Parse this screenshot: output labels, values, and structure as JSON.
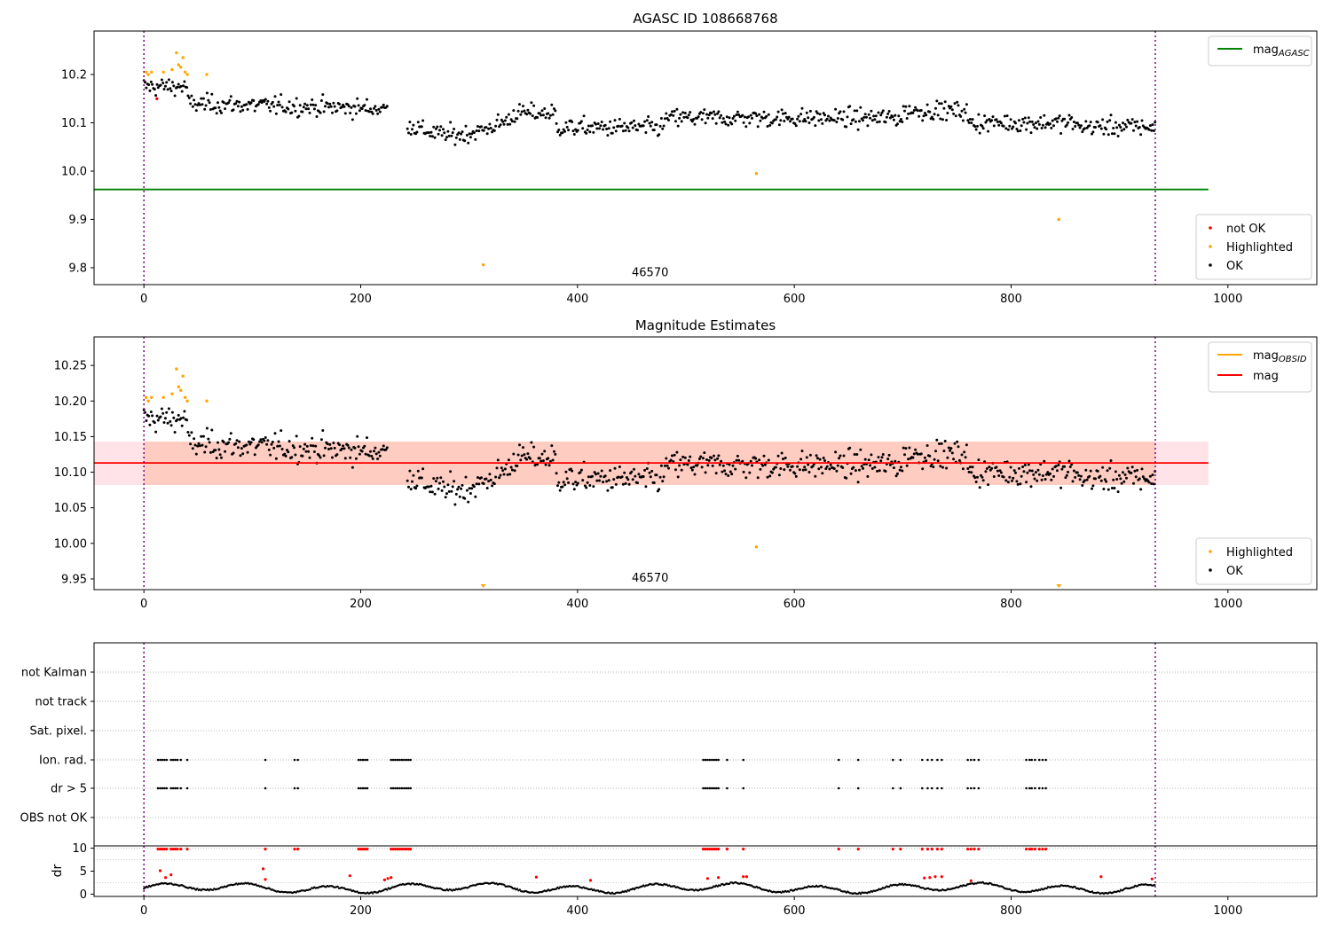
{
  "chart_data": [
    {
      "type": "scatter",
      "title": "AGASC ID 108668768",
      "xlim": [
        -46,
        1082
      ],
      "ylim": [
        9.765,
        10.29
      ],
      "x_ticks": [
        0,
        200,
        400,
        600,
        800,
        1000
      ],
      "x_tick_labels": [
        "0",
        "200",
        "400",
        "600",
        "800",
        "1000"
      ],
      "y_ticks": [
        9.8,
        9.9,
        10.0,
        10.1,
        10.2
      ],
      "y_tick_labels": [
        "9.8",
        "9.9",
        "10.0",
        "10.1",
        "10.2"
      ],
      "vlines": [
        0,
        933
      ],
      "hlines": [
        {
          "name": "mag",
          "name_sub": "AGASC",
          "y": 9.962,
          "x0": -46,
          "x1": 982,
          "color": "#008000"
        }
      ],
      "annotation": {
        "text": "46570",
        "x": 467,
        "y": 9.782
      },
      "legend_lines": [
        {
          "name": "mag",
          "sub": "AGASC",
          "color": "#008000"
        }
      ],
      "legend_points": [
        {
          "name": "not OK",
          "color": "#ff0000"
        },
        {
          "name": "Highlighted",
          "color": "#ffa500"
        },
        {
          "name": "OK",
          "color": "#000000"
        }
      ],
      "series": [
        {
          "name": "OK",
          "color": "#000000",
          "points": "generated: ~900 points, 0 to 933, mean 10.11"
        },
        {
          "name": "Highlighted",
          "color": "#ffa500",
          "points": [
            [
              2,
              10.205
            ],
            [
              4,
              10.2
            ],
            [
              7,
              10.205
            ],
            [
              18,
              10.205
            ],
            [
              26,
              10.21
            ],
            [
              30,
              10.245
            ],
            [
              32,
              10.22
            ],
            [
              34,
              10.215
            ],
            [
              36,
              10.235
            ],
            [
              38,
              10.205
            ],
            [
              40,
              10.2
            ],
            [
              58,
              10.2
            ],
            [
              313,
              9.806
            ],
            [
              565,
              9.995
            ],
            [
              844,
              9.9
            ]
          ]
        },
        {
          "name": "not OK",
          "color": "#ff0000",
          "points": [
            [
              12,
              10.15
            ]
          ]
        }
      ]
    },
    {
      "type": "scatter",
      "title": "Magnitude Estimates",
      "xlim": [
        -46,
        1082
      ],
      "ylim": [
        9.935,
        10.29
      ],
      "x_ticks": [
        0,
        200,
        400,
        600,
        800,
        1000
      ],
      "x_tick_labels": [
        "0",
        "200",
        "400",
        "600",
        "800",
        "1000"
      ],
      "y_ticks": [
        9.95,
        10.0,
        10.05,
        10.1,
        10.15,
        10.2,
        10.25
      ],
      "y_tick_labels": [
        "9.95",
        "10.00",
        "10.05",
        "10.10",
        "10.15",
        "10.20",
        "10.25"
      ],
      "vlines": [
        0,
        933
      ],
      "hlines": [
        {
          "name": "mag",
          "y": 10.113,
          "x0": -46,
          "x1": 982,
          "color": "#ff0000"
        }
      ],
      "bands": [
        {
          "y0": 10.082,
          "y1": 10.143,
          "x0": -46,
          "x1": 982,
          "color": "#ffc0cb",
          "opacity": 0.45
        },
        {
          "y0": 10.082,
          "y1": 10.143,
          "x0": 0,
          "x1": 933,
          "color": "#ffa07a",
          "opacity": 0.35
        }
      ],
      "annotation": {
        "text": "46570",
        "x": 467,
        "y": 9.946
      },
      "legend_lines": [
        {
          "name": "mag",
          "sub": "OBSID",
          "color": "#ffa500"
        },
        {
          "name": "mag",
          "color": "#ff0000"
        }
      ],
      "legend_points": [
        {
          "name": "Highlighted",
          "color": "#ffa500"
        },
        {
          "name": "OK",
          "color": "#000000"
        }
      ],
      "clipped_markers": [
        {
          "x": 313,
          "color": "#ffa500"
        },
        {
          "x": 844,
          "color": "#ffa500"
        }
      ],
      "series": [
        {
          "name": "OK",
          "color": "#000000",
          "points": "same as panel 1 OK points"
        },
        {
          "name": "Highlighted",
          "color": "#ffa500",
          "points": [
            [
              2,
              10.205
            ],
            [
              4,
              10.2
            ],
            [
              7,
              10.205
            ],
            [
              18,
              10.205
            ],
            [
              26,
              10.21
            ],
            [
              30,
              10.245
            ],
            [
              32,
              10.22
            ],
            [
              34,
              10.215
            ],
            [
              36,
              10.235
            ],
            [
              38,
              10.205
            ],
            [
              40,
              10.2
            ],
            [
              58,
              10.2
            ],
            [
              565,
              9.995
            ]
          ]
        }
      ]
    },
    {
      "type": "scatter",
      "title": "",
      "xlim": [
        -46,
        1082
      ],
      "categories": [
        "not Kalman",
        "not track",
        "Sat. pixel.",
        "Ion. rad.",
        "dr > 5",
        "OBS not OK"
      ],
      "vlines": [
        0,
        933
      ],
      "flag_x": [
        13,
        15,
        17,
        19,
        21,
        25,
        27,
        29,
        31,
        34,
        40,
        112,
        139,
        142,
        198,
        200,
        202,
        204,
        206,
        228,
        230,
        232,
        234,
        236,
        238,
        240,
        242,
        244,
        246,
        516,
        518,
        520,
        522,
        524,
        526,
        528,
        530,
        538,
        553,
        641,
        659,
        691,
        698,
        718,
        723,
        727,
        732,
        736,
        760,
        763,
        766,
        770,
        814,
        817,
        819,
        822,
        826,
        829,
        832
      ]
    },
    {
      "type": "scatter",
      "title": "",
      "ylabel": "dr",
      "xlim": [
        -46,
        1082
      ],
      "ylim": [
        -0.5,
        10.5
      ],
      "x_ticks": [
        0,
        200,
        400,
        600,
        800,
        1000
      ],
      "x_tick_labels": [
        "0",
        "200",
        "400",
        "600",
        "800",
        "1000"
      ],
      "y_ticks": [
        0,
        5,
        10
      ],
      "y_tick_labels": [
        "0",
        "5",
        "10"
      ],
      "vlines": [
        0,
        933
      ],
      "hlines": [
        {
          "y": 10,
          "color": "#000000"
        }
      ],
      "series": [
        {
          "name": "dr",
          "color": "#000000",
          "points": "generated: oscillating 0 to 3"
        },
        {
          "name": "dr > 5",
          "color": "#ff0000",
          "points": "flag_x at y=10 plus scattered points 3-6"
        }
      ]
    }
  ]
}
